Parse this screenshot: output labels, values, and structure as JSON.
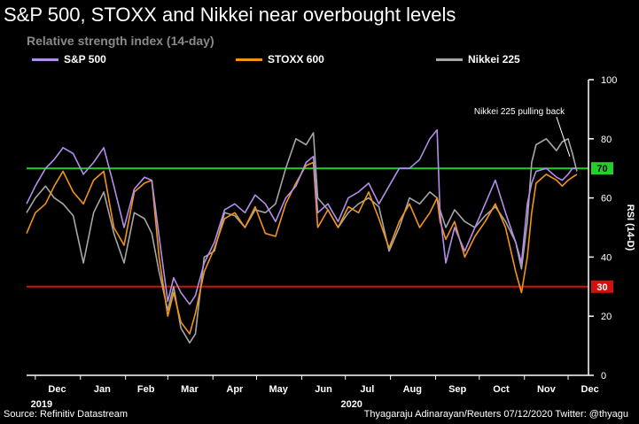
{
  "title": "S&P 500, STOXX and Nikkei near overbought levels",
  "subtitle": "Relative strength index (14-day)",
  "footer": {
    "source": "Source: Refinitiv Datastream",
    "credit": "Thyagaraju Adinarayan/Reuters 07/12/2020 Twitter: @thyagu"
  },
  "colors": {
    "background": "#000000",
    "sp500": "#b38ee8",
    "stoxx600": "#f29418",
    "nikkei225": "#a6a6a6",
    "overbought": "#21d02a",
    "oversold": "#d0110c"
  },
  "chart_data": {
    "type": "line",
    "ylabel": "RSI (14-D)",
    "ylim": [
      0,
      100
    ],
    "yticks": [
      0,
      20,
      40,
      60,
      80,
      100
    ],
    "grid": false,
    "legend_position": "top",
    "x_tick_labels": [
      "Dec",
      "Jan",
      "Feb",
      "Mar",
      "Apr",
      "May",
      "Jun",
      "Jul",
      "Aug",
      "Sep",
      "Oct",
      "Nov",
      "Dec"
    ],
    "x_tick_dates": [
      "2019-12-01",
      "2020-01-01",
      "2020-02-01",
      "2020-03-01",
      "2020-04-01",
      "2020-05-01",
      "2020-06-01",
      "2020-07-01",
      "2020-08-01",
      "2020-09-01",
      "2020-10-01",
      "2020-11-01",
      "2020-12-01"
    ],
    "year_labels": [
      {
        "text": "2019",
        "date": "2019-12-01"
      },
      {
        "text": "2020",
        "date": "2020-07-01"
      }
    ],
    "xlim": [
      "2019-11-25",
      "2020-12-15"
    ],
    "reference_lines": [
      {
        "value": 70,
        "label": "70",
        "color": "#21d02a"
      },
      {
        "value": 30,
        "label": "30",
        "color": "#d0110c"
      }
    ],
    "annotation": {
      "text": "Nikkei 225 pulling back",
      "date": "2020-12-04",
      "value": 74
    },
    "series": [
      {
        "name": "S&P 500",
        "color": "#b38ee8",
        "points": [
          [
            "2019-11-25",
            58
          ],
          [
            "2019-12-01",
            64
          ],
          [
            "2019-12-08",
            70
          ],
          [
            "2019-12-14",
            73
          ],
          [
            "2019-12-20",
            77
          ],
          [
            "2019-12-27",
            75
          ],
          [
            "2020-01-03",
            68
          ],
          [
            "2020-01-10",
            72
          ],
          [
            "2020-01-17",
            77
          ],
          [
            "2020-01-24",
            64
          ],
          [
            "2020-01-31",
            50
          ],
          [
            "2020-02-07",
            63
          ],
          [
            "2020-02-14",
            67
          ],
          [
            "2020-02-19",
            66
          ],
          [
            "2020-02-24",
            47
          ],
          [
            "2020-03-01",
            25
          ],
          [
            "2020-03-05",
            33
          ],
          [
            "2020-03-10",
            28
          ],
          [
            "2020-03-16",
            24
          ],
          [
            "2020-03-20",
            27
          ],
          [
            "2020-03-26",
            38
          ],
          [
            "2020-04-02",
            45
          ],
          [
            "2020-04-09",
            56
          ],
          [
            "2020-04-16",
            58
          ],
          [
            "2020-04-23",
            55
          ],
          [
            "2020-04-30",
            61
          ],
          [
            "2020-05-07",
            58
          ],
          [
            "2020-05-14",
            52
          ],
          [
            "2020-05-21",
            60
          ],
          [
            "2020-05-28",
            64
          ],
          [
            "2020-06-04",
            72
          ],
          [
            "2020-06-09",
            74
          ],
          [
            "2020-06-12",
            55
          ],
          [
            "2020-06-19",
            58
          ],
          [
            "2020-06-26",
            52
          ],
          [
            "2020-07-03",
            60
          ],
          [
            "2020-07-10",
            62
          ],
          [
            "2020-07-17",
            65
          ],
          [
            "2020-07-24",
            58
          ],
          [
            "2020-07-31",
            64
          ],
          [
            "2020-08-07",
            70
          ],
          [
            "2020-08-14",
            70
          ],
          [
            "2020-08-21",
            73
          ],
          [
            "2020-08-28",
            80
          ],
          [
            "2020-09-02",
            83
          ],
          [
            "2020-09-04",
            55
          ],
          [
            "2020-09-08",
            38
          ],
          [
            "2020-09-14",
            50
          ],
          [
            "2020-09-21",
            42
          ],
          [
            "2020-09-28",
            50
          ],
          [
            "2020-10-05",
            58
          ],
          [
            "2020-10-12",
            66
          ],
          [
            "2020-10-19",
            55
          ],
          [
            "2020-10-26",
            45
          ],
          [
            "2020-10-30",
            38
          ],
          [
            "2020-11-03",
            58
          ],
          [
            "2020-11-06",
            65
          ],
          [
            "2020-11-09",
            69
          ],
          [
            "2020-11-16",
            70
          ],
          [
            "2020-11-23",
            67
          ],
          [
            "2020-11-27",
            66
          ],
          [
            "2020-12-01",
            68
          ],
          [
            "2020-12-04",
            70
          ],
          [
            "2020-12-07",
            70
          ]
        ]
      },
      {
        "name": "STOXX 600",
        "color": "#f29418",
        "points": [
          [
            "2019-11-25",
            48
          ],
          [
            "2019-12-01",
            55
          ],
          [
            "2019-12-08",
            58
          ],
          [
            "2019-12-14",
            64
          ],
          [
            "2019-12-20",
            69
          ],
          [
            "2019-12-27",
            62
          ],
          [
            "2020-01-03",
            58
          ],
          [
            "2020-01-10",
            66
          ],
          [
            "2020-01-17",
            69
          ],
          [
            "2020-01-24",
            50
          ],
          [
            "2020-01-31",
            44
          ],
          [
            "2020-02-07",
            62
          ],
          [
            "2020-02-14",
            65
          ],
          [
            "2020-02-19",
            66
          ],
          [
            "2020-02-24",
            40
          ],
          [
            "2020-03-01",
            20
          ],
          [
            "2020-03-05",
            28
          ],
          [
            "2020-03-10",
            18
          ],
          [
            "2020-03-16",
            14
          ],
          [
            "2020-03-20",
            21
          ],
          [
            "2020-03-26",
            35
          ],
          [
            "2020-04-02",
            43
          ],
          [
            "2020-04-09",
            53
          ],
          [
            "2020-04-16",
            55
          ],
          [
            "2020-04-23",
            50
          ],
          [
            "2020-04-30",
            57
          ],
          [
            "2020-05-07",
            48
          ],
          [
            "2020-05-14",
            47
          ],
          [
            "2020-05-21",
            58
          ],
          [
            "2020-05-28",
            65
          ],
          [
            "2020-06-04",
            71
          ],
          [
            "2020-06-09",
            72
          ],
          [
            "2020-06-12",
            50
          ],
          [
            "2020-06-19",
            56
          ],
          [
            "2020-06-26",
            50
          ],
          [
            "2020-07-03",
            57
          ],
          [
            "2020-07-10",
            55
          ],
          [
            "2020-07-17",
            62
          ],
          [
            "2020-07-24",
            53
          ],
          [
            "2020-07-31",
            43
          ],
          [
            "2020-08-07",
            52
          ],
          [
            "2020-08-14",
            58
          ],
          [
            "2020-08-21",
            50
          ],
          [
            "2020-08-28",
            55
          ],
          [
            "2020-09-02",
            60
          ],
          [
            "2020-09-04",
            52
          ],
          [
            "2020-09-08",
            46
          ],
          [
            "2020-09-14",
            52
          ],
          [
            "2020-09-21",
            40
          ],
          [
            "2020-09-28",
            47
          ],
          [
            "2020-10-05",
            52
          ],
          [
            "2020-10-12",
            58
          ],
          [
            "2020-10-19",
            50
          ],
          [
            "2020-10-26",
            35
          ],
          [
            "2020-10-30",
            28
          ],
          [
            "2020-11-03",
            40
          ],
          [
            "2020-11-06",
            55
          ],
          [
            "2020-11-09",
            65
          ],
          [
            "2020-11-16",
            68
          ],
          [
            "2020-11-23",
            66
          ],
          [
            "2020-11-27",
            64
          ],
          [
            "2020-12-01",
            66
          ],
          [
            "2020-12-04",
            67
          ],
          [
            "2020-12-07",
            68
          ]
        ]
      },
      {
        "name": "Nikkei 225",
        "color": "#a6a6a6",
        "points": [
          [
            "2019-11-25",
            55
          ],
          [
            "2019-12-01",
            60
          ],
          [
            "2019-12-08",
            64
          ],
          [
            "2019-12-14",
            60
          ],
          [
            "2019-12-20",
            58
          ],
          [
            "2019-12-27",
            54
          ],
          [
            "2020-01-03",
            38
          ],
          [
            "2020-01-10",
            55
          ],
          [
            "2020-01-17",
            62
          ],
          [
            "2020-01-24",
            48
          ],
          [
            "2020-01-31",
            38
          ],
          [
            "2020-02-07",
            55
          ],
          [
            "2020-02-14",
            53
          ],
          [
            "2020-02-19",
            48
          ],
          [
            "2020-02-24",
            35
          ],
          [
            "2020-03-01",
            22
          ],
          [
            "2020-03-05",
            30
          ],
          [
            "2020-03-10",
            16
          ],
          [
            "2020-03-16",
            11
          ],
          [
            "2020-03-20",
            14
          ],
          [
            "2020-03-26",
            40
          ],
          [
            "2020-04-02",
            42
          ],
          [
            "2020-04-09",
            55
          ],
          [
            "2020-04-16",
            54
          ],
          [
            "2020-04-23",
            50
          ],
          [
            "2020-04-30",
            56
          ],
          [
            "2020-05-07",
            55
          ],
          [
            "2020-05-14",
            58
          ],
          [
            "2020-05-21",
            70
          ],
          [
            "2020-05-28",
            80
          ],
          [
            "2020-06-04",
            78
          ],
          [
            "2020-06-09",
            82
          ],
          [
            "2020-06-12",
            60
          ],
          [
            "2020-06-19",
            56
          ],
          [
            "2020-06-26",
            50
          ],
          [
            "2020-07-03",
            55
          ],
          [
            "2020-07-10",
            58
          ],
          [
            "2020-07-17",
            60
          ],
          [
            "2020-07-24",
            57
          ],
          [
            "2020-07-31",
            42
          ],
          [
            "2020-08-07",
            50
          ],
          [
            "2020-08-14",
            60
          ],
          [
            "2020-08-21",
            58
          ],
          [
            "2020-08-28",
            62
          ],
          [
            "2020-09-02",
            60
          ],
          [
            "2020-09-04",
            56
          ],
          [
            "2020-09-08",
            50
          ],
          [
            "2020-09-14",
            56
          ],
          [
            "2020-09-21",
            52
          ],
          [
            "2020-09-28",
            50
          ],
          [
            "2020-10-05",
            54
          ],
          [
            "2020-10-12",
            57
          ],
          [
            "2020-10-19",
            52
          ],
          [
            "2020-10-26",
            45
          ],
          [
            "2020-10-30",
            36
          ],
          [
            "2020-11-03",
            52
          ],
          [
            "2020-11-06",
            72
          ],
          [
            "2020-11-09",
            78
          ],
          [
            "2020-11-16",
            80
          ],
          [
            "2020-11-23",
            76
          ],
          [
            "2020-11-27",
            79
          ],
          [
            "2020-12-01",
            80
          ],
          [
            "2020-12-04",
            75
          ],
          [
            "2020-12-07",
            69
          ]
        ]
      }
    ]
  }
}
